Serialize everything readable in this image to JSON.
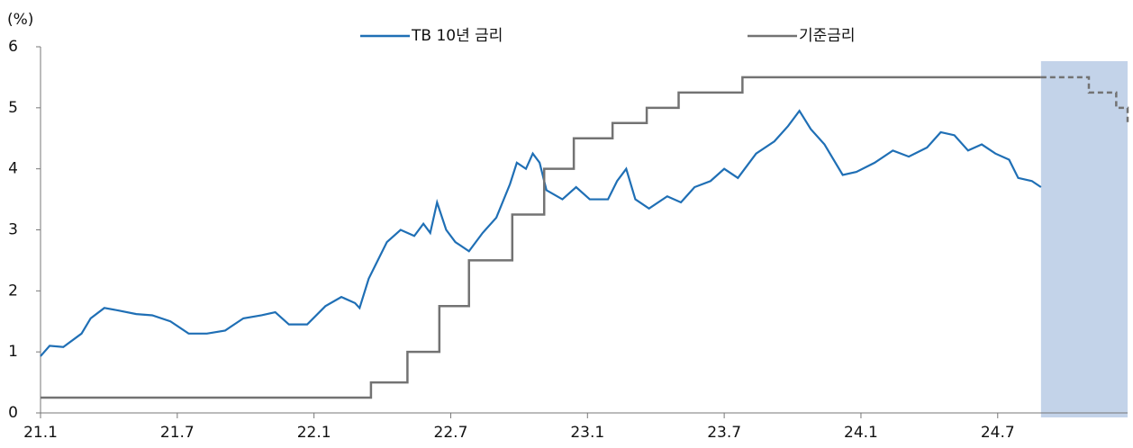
{
  "chart_data": {
    "type": "line",
    "y_axis_label": "(%)",
    "xlim": [
      0,
      47.7
    ],
    "xticks": [
      {
        "value": 0,
        "label": "21.1"
      },
      {
        "value": 6,
        "label": "21.7"
      },
      {
        "value": 12,
        "label": "22.1"
      },
      {
        "value": 18,
        "label": "22.7"
      },
      {
        "value": 24,
        "label": "23.1"
      },
      {
        "value": 30,
        "label": "23.7"
      },
      {
        "value": 36,
        "label": "24.1"
      },
      {
        "value": 42,
        "label": "24.7"
      }
    ],
    "ylim": [
      0,
      6
    ],
    "yticks": [
      0,
      1,
      2,
      3,
      4,
      5,
      6
    ],
    "grid": false,
    "legend": "top",
    "shaded_xrange": [
      43.9,
      47.7
    ],
    "shade_color": "#c3d3e9",
    "series": [
      {
        "name": "TB 10년 금리",
        "color": "#1f6fb5",
        "style": "line",
        "x": [
          0,
          0.4,
          1.0,
          1.8,
          2.2,
          2.8,
          3.4,
          4.2,
          4.9,
          5.7,
          6.5,
          7.3,
          8.1,
          8.9,
          9.7,
          10.3,
          10.9,
          11.7,
          12.5,
          13.2,
          13.8,
          14.0,
          14.4,
          14.8,
          15.2,
          15.8,
          16.4,
          16.8,
          17.1,
          17.4,
          17.8,
          18.2,
          18.8,
          19.4,
          20.0,
          20.6,
          20.9,
          21.3,
          21.6,
          21.9,
          22.2,
          22.9,
          23.5,
          24.1,
          24.9,
          25.3,
          25.7,
          26.1,
          26.7,
          27.5,
          28.1,
          28.7,
          29.4,
          30.0,
          30.6,
          31.4,
          32.2,
          32.8,
          33.3,
          33.8,
          34.4,
          35.2,
          35.8,
          36.6,
          37.4,
          38.1,
          38.9,
          39.5,
          40.1,
          40.7,
          41.3,
          41.9,
          42.5,
          42.9,
          43.5,
          43.9
        ],
        "values": [
          0.93,
          1.1,
          1.08,
          1.3,
          1.55,
          1.72,
          1.68,
          1.62,
          1.6,
          1.5,
          1.3,
          1.3,
          1.35,
          1.55,
          1.6,
          1.65,
          1.45,
          1.45,
          1.75,
          1.9,
          1.8,
          1.72,
          2.2,
          2.5,
          2.8,
          3.0,
          2.9,
          3.1,
          2.95,
          3.45,
          3.0,
          2.8,
          2.65,
          2.95,
          3.2,
          3.75,
          4.1,
          4.0,
          4.25,
          4.1,
          3.65,
          3.5,
          3.7,
          3.5,
          3.5,
          3.8,
          4.0,
          3.5,
          3.35,
          3.55,
          3.45,
          3.7,
          3.8,
          4.0,
          3.85,
          4.25,
          4.45,
          4.7,
          4.95,
          4.65,
          4.4,
          3.9,
          3.95,
          4.1,
          4.3,
          4.2,
          4.35,
          4.6,
          4.55,
          4.3,
          4.4,
          4.25,
          4.15,
          3.85,
          3.8,
          3.7
        ]
      },
      {
        "name": "기준금리",
        "color": "#737373",
        "style": "step",
        "x": [
          0,
          14.5,
          16.1,
          17.5,
          18.8,
          20.7,
          22.1,
          23.4,
          25.1,
          26.6,
          28.0,
          30.8,
          43.9
        ],
        "values": [
          0.25,
          0.5,
          1,
          1.75,
          2.5,
          3.25,
          4,
          4.5,
          4.75,
          5,
          5.25,
          5.5,
          5.5
        ],
        "forecast": {
          "x": [
            43.9,
            44.3,
            46.0,
            47.2,
            47.7
          ],
          "values": [
            5.5,
            5.5,
            5.25,
            5,
            4.75
          ]
        }
      }
    ]
  }
}
